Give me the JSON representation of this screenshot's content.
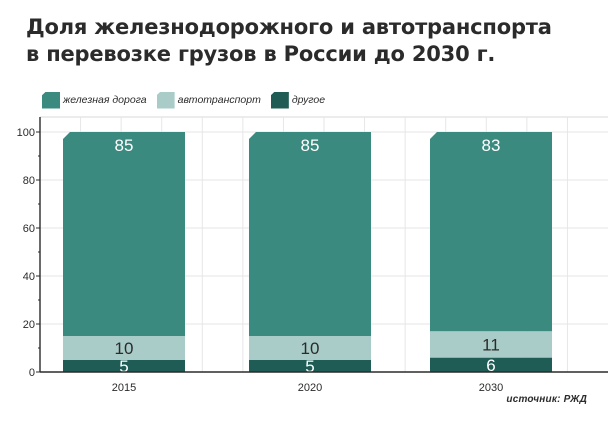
{
  "title_lines": [
    "Доля железнодорожного и автотранспорта",
    "в перевозке грузов в России  до 2030 г."
  ],
  "source": "источник: РЖД",
  "colors": {
    "rail": "#3a8a80",
    "auto": "#a9ccc8",
    "other": "#1e5c55",
    "axis": "#2b2b2b"
  },
  "chart_data": {
    "type": "bar",
    "stacked": true,
    "title": "Доля железнодорожного и автотранспорта в перевозке грузов в России до 2030 г.",
    "categories": [
      "2015",
      "2020",
      "2030"
    ],
    "series": [
      {
        "name": "другое",
        "values": [
          5,
          5,
          6
        ]
      },
      {
        "name": "автотранспорт",
        "values": [
          10,
          10,
          11
        ]
      },
      {
        "name": "железная дорога",
        "values": [
          85,
          85,
          83
        ]
      }
    ],
    "ylim": [
      0,
      100
    ],
    "yticks": [
      0,
      20,
      40,
      60,
      80,
      100
    ],
    "legend_position": "top-left",
    "grid": true
  },
  "legend": [
    {
      "label": "железная дорога",
      "key": "rail"
    },
    {
      "label": "автотранспорт",
      "key": "auto"
    },
    {
      "label": "другое",
      "key": "other"
    }
  ]
}
